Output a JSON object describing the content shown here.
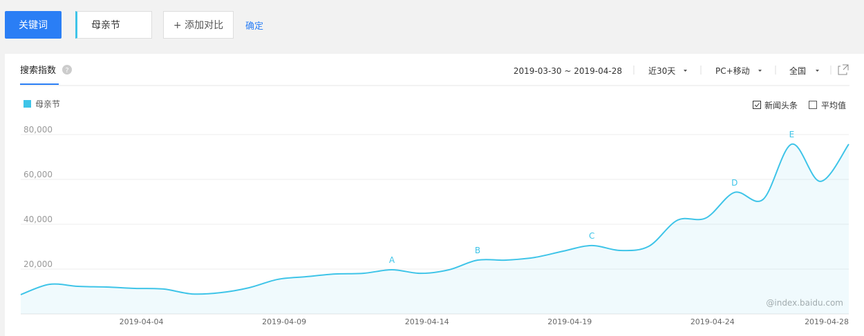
{
  "toolbar": {
    "keyword_button": "关键词",
    "keyword": "母亲节",
    "add_compare": "+ 添加对比",
    "confirm": "确定"
  },
  "panel": {
    "tab": "搜索指数",
    "date_range": "2019-03-30 ~ 2019-04-28",
    "period": "近30天",
    "device": "PC+移动",
    "region": "全国",
    "options": [
      "新闻头条",
      "平均值"
    ],
    "watermark": "@index.baidu.com"
  },
  "chart_data": {
    "type": "line",
    "x": [
      "2019-03-30",
      "2019-03-31",
      "2019-04-01",
      "2019-04-02",
      "2019-04-03",
      "2019-04-04",
      "2019-04-05",
      "2019-04-06",
      "2019-04-07",
      "2019-04-08",
      "2019-04-09",
      "2019-04-10",
      "2019-04-11",
      "2019-04-12",
      "2019-04-13",
      "2019-04-14",
      "2019-04-15",
      "2019-04-16",
      "2019-04-17",
      "2019-04-18",
      "2019-04-19",
      "2019-04-20",
      "2019-04-21",
      "2019-04-22",
      "2019-04-23",
      "2019-04-24",
      "2019-04-25",
      "2019-04-26",
      "2019-04-27",
      "2019-04-28"
    ],
    "series": [
      {
        "name": "母亲节",
        "color": "#3ec4e8",
        "values": [
          8600,
          13200,
          12300,
          12000,
          11400,
          11100,
          8900,
          9500,
          11700,
          15400,
          16600,
          17800,
          18100,
          19700,
          18100,
          19700,
          24000,
          24000,
          25200,
          28000,
          30500,
          28300,
          30200,
          41800,
          42800,
          54200,
          51100,
          75700,
          59100,
          75700
        ]
      }
    ],
    "ylim": [
      0,
      80000
    ],
    "yticks": [
      {
        "value": 20000,
        "label": "20,000"
      },
      {
        "value": 40000,
        "label": "40,000"
      },
      {
        "value": 60000,
        "label": "60,000"
      },
      {
        "value": 80000,
        "label": "80,000"
      }
    ],
    "xticks": [
      "2019-04-04",
      "2019-04-09",
      "2019-04-14",
      "2019-04-19",
      "2019-04-24",
      "2019-04-28"
    ],
    "annotations": [
      {
        "label": "A",
        "x": "2019-04-12"
      },
      {
        "label": "B",
        "x": "2019-04-15"
      },
      {
        "label": "C",
        "x": "2019-04-19"
      },
      {
        "label": "D",
        "x": "2019-04-24"
      },
      {
        "label": "E",
        "x": "2019-04-26"
      }
    ],
    "grid": true
  }
}
